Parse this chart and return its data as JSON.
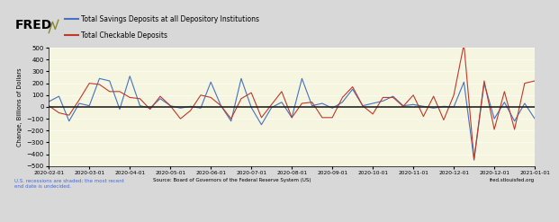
{
  "legend_line1": "Total Savings Deposits at all Depository Institutions",
  "legend_line2": "Total Checkable Deposits",
  "ylabel": "Change, Billions of Dollars",
  "source_text": "Source: Board of Governors of the Federal Reserve System (US)",
  "recession_text": "U.S. recessions are shaded; the most recent\nend date is undecided.",
  "fred_url": "fred.stlouisfed.org",
  "ylim": [
    -500,
    500
  ],
  "yticks": [
    -500,
    -400,
    -300,
    -200,
    -100,
    0,
    100,
    200,
    300,
    400,
    500
  ],
  "plot_bg": "#f5f5e0",
  "header_bg": "#c8c8c8",
  "fig_bg": "#d8d8d8",
  "blue_color": "#4472c4",
  "red_color": "#c0392b",
  "x_tick_positions": [
    0,
    4,
    8,
    12,
    16,
    20,
    24,
    28,
    32,
    36,
    40,
    44,
    48
  ],
  "x_labels": [
    "2020-02-01",
    "2020-03-01",
    "2020-04-01",
    "2020-05-01",
    "2020-06-01",
    "2020-07-01",
    "2020-08-01",
    "2020-09-01",
    "2020-10-01",
    "2020-11-01",
    "2020-12-01",
    "2020-12-01",
    "2021-01-01"
  ],
  "blue_x": [
    0,
    1,
    2,
    3,
    4,
    5,
    6,
    7,
    8,
    9,
    10,
    11,
    12,
    13,
    14,
    15,
    16,
    17,
    18,
    19,
    20,
    21,
    22,
    23,
    24,
    25,
    26,
    27,
    28,
    29,
    30,
    31,
    32,
    33,
    34,
    35,
    36,
    37,
    38,
    39,
    40,
    41,
    42,
    43,
    44,
    45,
    46,
    47,
    48
  ],
  "blue_y": [
    45,
    90,
    -120,
    30,
    10,
    240,
    220,
    -20,
    260,
    10,
    -10,
    70,
    10,
    -10,
    5,
    -10,
    210,
    10,
    -120,
    240,
    -5,
    -150,
    -5,
    40,
    -90,
    240,
    10,
    30,
    -10,
    40,
    150,
    10,
    30,
    50,
    90,
    10,
    20,
    5,
    -10,
    5,
    0,
    210,
    -450,
    200,
    -100,
    40,
    -120,
    30,
    -100
  ],
  "red_x": [
    0,
    1,
    2,
    3,
    4,
    5,
    6,
    7,
    8,
    9,
    10,
    11,
    12,
    13,
    14,
    15,
    16,
    17,
    18,
    19,
    20,
    21,
    22,
    23,
    24,
    25,
    26,
    27,
    28,
    29,
    30,
    31,
    32,
    33,
    34,
    35,
    36,
    37,
    38,
    39,
    40,
    41,
    42,
    43,
    44,
    45,
    46,
    47,
    48
  ],
  "red_y": [
    10,
    -50,
    -70,
    60,
    200,
    190,
    130,
    130,
    80,
    70,
    -20,
    90,
    10,
    -100,
    -30,
    100,
    80,
    10,
    -100,
    70,
    120,
    -90,
    20,
    130,
    -90,
    30,
    40,
    -90,
    -90,
    80,
    170,
    10,
    -60,
    80,
    80,
    5,
    100,
    -80,
    90,
    -110,
    100,
    530,
    -440,
    220,
    -190,
    130,
    -190,
    200,
    220
  ]
}
